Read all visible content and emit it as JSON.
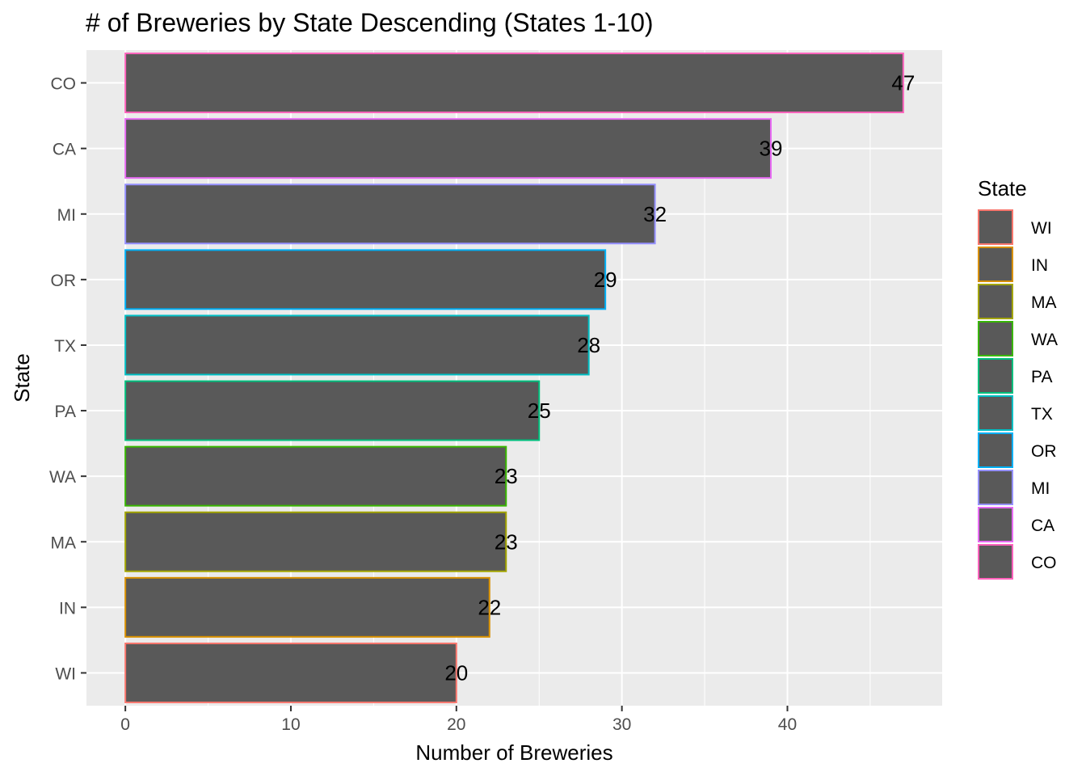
{
  "chart_data": {
    "type": "bar",
    "orientation": "horizontal",
    "title": "# of Breweries by State Descending (States 1-10)",
    "xlabel": "Number of Breweries",
    "ylabel": "State",
    "categories": [
      "WI",
      "IN",
      "MA",
      "WA",
      "PA",
      "TX",
      "OR",
      "MI",
      "CA",
      "CO"
    ],
    "values": [
      20,
      22,
      23,
      23,
      25,
      28,
      29,
      32,
      39,
      47
    ],
    "data_labels": [
      "20",
      "22",
      "23",
      "23",
      "25",
      "28",
      "29",
      "32",
      "39",
      "47"
    ],
    "xlim": [
      -2.35,
      49.35
    ],
    "x_ticks": [
      0,
      10,
      20,
      30,
      40
    ],
    "x_tick_labels": [
      "0",
      "10",
      "20",
      "30",
      "40"
    ],
    "grid": true,
    "bar_fill": "#595959",
    "panel_background": "#ebebeb",
    "legend": {
      "title": "State",
      "placement": "right",
      "entries": [
        "WI",
        "IN",
        "MA",
        "WA",
        "PA",
        "TX",
        "OR",
        "MI",
        "CA",
        "CO"
      ],
      "colors": [
        "#F8766D",
        "#D89000",
        "#A3A500",
        "#39B600",
        "#00BF7D",
        "#00BFC4",
        "#00B0F6",
        "#9590FF",
        "#E76BF3",
        "#FF62BC"
      ]
    }
  }
}
